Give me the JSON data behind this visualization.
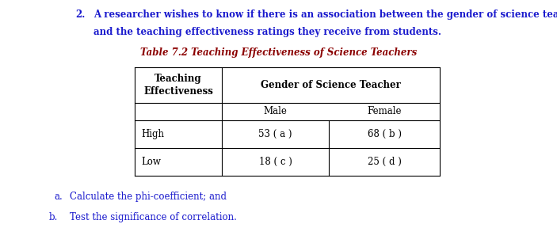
{
  "item_number": "2.",
  "question_text_line1": "A researcher wishes to know if there is an association between the gender of science teachers",
  "question_text_line2": "and the teaching effectiveness ratings they receive from students.",
  "table_title": "Table 7.2 Teaching Effectiveness of Science Teachers",
  "col_header1": "Teaching\nEffectiveness",
  "col_header2": "Gender of Science Teacher",
  "sub_col1": "Male",
  "sub_col2": "Female",
  "row1_label": "High",
  "row2_label": "Low",
  "cell_a": "53 ( a )",
  "cell_b": "68 ( b )",
  "cell_c": "18 ( c )",
  "cell_d": "25 ( d )",
  "sub_item_a": "a.",
  "sub_item_a_text": "Calculate the phi-coefficient; and",
  "sub_item_b": "b.",
  "sub_item_b_text": "Test the significance of correlation.",
  "blue": "#1a1acd",
  "black": "#000000",
  "dark_red": "#8B0000",
  "bg": "#ffffff",
  "fs_body": 8.5,
  "fs_table": 8.5,
  "fs_title": 8.5
}
